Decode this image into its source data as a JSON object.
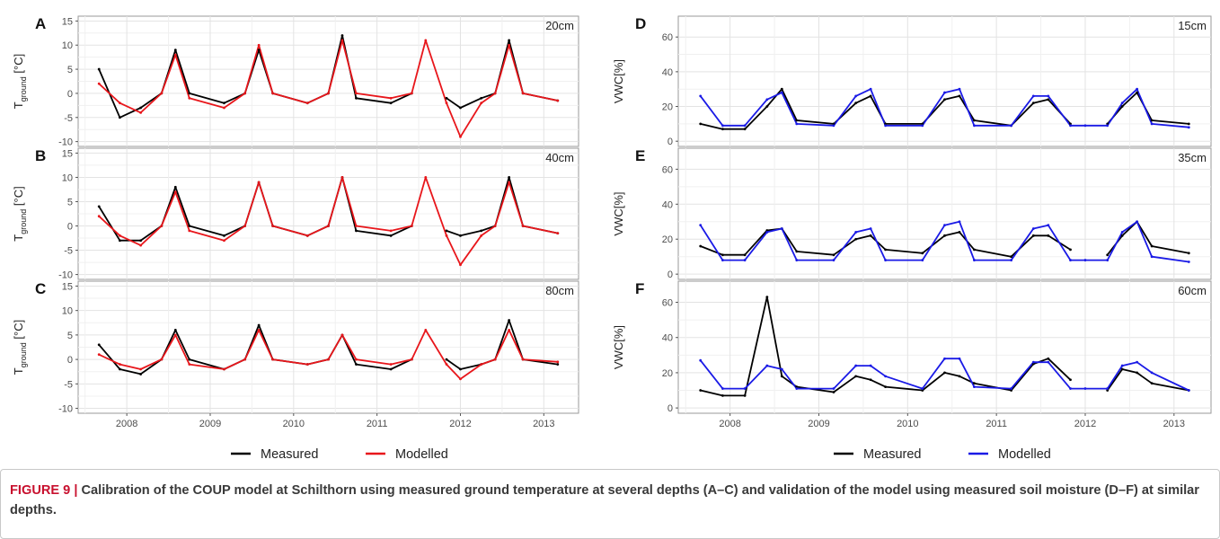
{
  "figure": {
    "years": [
      "2008",
      "2009",
      "2010",
      "2011",
      "2012",
      "2013"
    ],
    "left_ylabel_main": "T",
    "left_ylabel_sub": "ground",
    "left_ylabel_unit": " [°C]",
    "right_ylabel": "VWC[%]",
    "left_legend": [
      {
        "label": "Measured",
        "color": "#000000"
      },
      {
        "label": "Modelled",
        "color": "#e8161b"
      }
    ],
    "right_legend": [
      {
        "label": "Measured",
        "color": "#000000"
      },
      {
        "label": "Modelled",
        "color": "#1a1ae6"
      }
    ]
  },
  "chart_data": [
    {
      "panel": "A",
      "type": "line",
      "depth_label": "20cm",
      "x": [
        "2007-09",
        "2007-12",
        "2008-03",
        "2008-06",
        "2008-08",
        "2008-10",
        "2009-03",
        "2009-06",
        "2009-08",
        "2009-10",
        "2010-03",
        "2010-06",
        "2010-08",
        "2010-10",
        "2011-03",
        "2011-06",
        "2011-08",
        "2011-11",
        "2012-01",
        "2012-04",
        "2012-06",
        "2012-08",
        "2012-10",
        "2013-03"
      ],
      "xlim": [
        "2007-06",
        "2013-06"
      ],
      "ylim": [
        -11,
        16
      ],
      "yticks": [
        -10,
        -5,
        0,
        5,
        10,
        15
      ],
      "series": [
        {
          "name": "Measured",
          "color": "#000000",
          "values": [
            5,
            -5,
            -3,
            0,
            9,
            0,
            -2,
            0,
            9,
            0,
            -2,
            0,
            12,
            -1,
            -2,
            0,
            null,
            -1,
            -3,
            -1,
            0,
            11,
            0,
            -1.5
          ]
        },
        {
          "name": "Modelled",
          "color": "#e8161b",
          "values": [
            2,
            -2,
            -4,
            0,
            8,
            -1,
            -3,
            0,
            10,
            0,
            -2,
            0,
            11,
            0,
            -1,
            0,
            11,
            -2,
            -9,
            -2,
            0,
            10,
            0,
            -1.5
          ]
        }
      ]
    },
    {
      "panel": "B",
      "type": "line",
      "depth_label": "40cm",
      "x": [
        "2007-09",
        "2007-12",
        "2008-03",
        "2008-06",
        "2008-08",
        "2008-10",
        "2009-03",
        "2009-06",
        "2009-08",
        "2009-10",
        "2010-03",
        "2010-06",
        "2010-08",
        "2010-10",
        "2011-03",
        "2011-06",
        "2011-08",
        "2011-11",
        "2012-01",
        "2012-04",
        "2012-06",
        "2012-08",
        "2012-10",
        "2013-03"
      ],
      "xlim": [
        "2007-06",
        "2013-06"
      ],
      "ylim": [
        -11,
        16
      ],
      "yticks": [
        -10,
        -5,
        0,
        5,
        10,
        15
      ],
      "series": [
        {
          "name": "Measured",
          "color": "#000000",
          "values": [
            4,
            -3,
            -3,
            0,
            8,
            0,
            -2,
            0,
            9,
            0,
            -2,
            0,
            10,
            -1,
            -2,
            0,
            null,
            -1,
            -2,
            -1,
            0,
            10,
            0,
            -1.5
          ]
        },
        {
          "name": "Modelled",
          "color": "#e8161b",
          "values": [
            2,
            -2,
            -4,
            0,
            7,
            -1,
            -3,
            0,
            9,
            0,
            -2,
            0,
            10,
            0,
            -1,
            0,
            10,
            -2,
            -8,
            -2,
            0,
            9,
            0,
            -1.5
          ]
        }
      ]
    },
    {
      "panel": "C",
      "type": "line",
      "depth_label": "80cm",
      "x": [
        "2007-09",
        "2007-12",
        "2008-03",
        "2008-06",
        "2008-08",
        "2008-10",
        "2009-03",
        "2009-06",
        "2009-08",
        "2009-10",
        "2010-03",
        "2010-06",
        "2010-08",
        "2010-10",
        "2011-03",
        "2011-06",
        "2011-08",
        "2011-11",
        "2012-01",
        "2012-04",
        "2012-06",
        "2012-08",
        "2012-10",
        "2013-03"
      ],
      "xlim": [
        "2007-06",
        "2013-06"
      ],
      "ylim": [
        -11,
        16
      ],
      "yticks": [
        -10,
        -5,
        0,
        5,
        10,
        15
      ],
      "series": [
        {
          "name": "Measured",
          "color": "#000000",
          "values": [
            3,
            -2,
            -3,
            0,
            6,
            0,
            -2,
            0,
            7,
            0,
            -1,
            0,
            5,
            -1,
            -2,
            0,
            null,
            0,
            -2,
            -1,
            0,
            8,
            0,
            -1
          ]
        },
        {
          "name": "Modelled",
          "color": "#e8161b",
          "values": [
            1,
            -1,
            -2,
            0,
            5,
            -1,
            -2,
            0,
            6,
            0,
            -1,
            0,
            5,
            0,
            -1,
            0,
            6,
            -1,
            -4,
            -1,
            0,
            6,
            0,
            -0.5
          ]
        }
      ]
    },
    {
      "panel": "D",
      "type": "line",
      "depth_label": "15cm",
      "x": [
        "2007-09",
        "2007-12",
        "2008-03",
        "2008-06",
        "2008-08",
        "2008-10",
        "2009-03",
        "2009-06",
        "2009-08",
        "2009-10",
        "2010-03",
        "2010-06",
        "2010-08",
        "2010-10",
        "2011-03",
        "2011-06",
        "2011-08",
        "2011-11",
        "2012-01",
        "2012-04",
        "2012-06",
        "2012-08",
        "2012-10",
        "2013-03"
      ],
      "xlim": [
        "2007-06",
        "2013-06"
      ],
      "ylim": [
        -3,
        72
      ],
      "yticks": [
        0,
        20,
        40,
        60
      ],
      "series": [
        {
          "name": "Measured",
          "color": "#000000",
          "values": [
            10,
            7,
            7,
            20,
            30,
            12,
            10,
            22,
            26,
            10,
            10,
            24,
            26,
            12,
            9,
            22,
            24,
            10,
            null,
            10,
            20,
            28,
            12,
            10
          ]
        },
        {
          "name": "Modelled",
          "color": "#1a1ae6",
          "values": [
            26,
            9,
            9,
            24,
            28,
            10,
            9,
            26,
            30,
            9,
            9,
            28,
            30,
            9,
            9,
            26,
            26,
            9,
            9,
            9,
            22,
            30,
            10,
            8
          ]
        }
      ]
    },
    {
      "panel": "E",
      "type": "line",
      "depth_label": "35cm",
      "x": [
        "2007-09",
        "2007-12",
        "2008-03",
        "2008-06",
        "2008-08",
        "2008-10",
        "2009-03",
        "2009-06",
        "2009-08",
        "2009-10",
        "2010-03",
        "2010-06",
        "2010-08",
        "2010-10",
        "2011-03",
        "2011-06",
        "2011-08",
        "2011-11",
        "2012-01",
        "2012-04",
        "2012-06",
        "2012-08",
        "2012-10",
        "2013-03"
      ],
      "xlim": [
        "2007-06",
        "2013-06"
      ],
      "ylim": [
        -3,
        72
      ],
      "yticks": [
        0,
        20,
        40,
        60
      ],
      "series": [
        {
          "name": "Measured",
          "color": "#000000",
          "values": [
            16,
            11,
            11,
            25,
            26,
            13,
            11,
            20,
            22,
            14,
            12,
            22,
            24,
            14,
            10,
            22,
            22,
            14,
            null,
            11,
            22,
            30,
            16,
            12
          ]
        },
        {
          "name": "Modelled",
          "color": "#1a1ae6",
          "values": [
            28,
            8,
            8,
            24,
            26,
            8,
            8,
            24,
            26,
            8,
            8,
            28,
            30,
            8,
            8,
            26,
            28,
            8,
            8,
            8,
            24,
            30,
            10,
            7
          ]
        }
      ]
    },
    {
      "panel": "F",
      "type": "line",
      "depth_label": "60cm",
      "x": [
        "2007-09",
        "2007-12",
        "2008-03",
        "2008-06",
        "2008-08",
        "2008-10",
        "2009-03",
        "2009-06",
        "2009-08",
        "2009-10",
        "2010-03",
        "2010-06",
        "2010-08",
        "2010-10",
        "2011-03",
        "2011-06",
        "2011-08",
        "2011-11",
        "2012-01",
        "2012-04",
        "2012-06",
        "2012-08",
        "2012-10",
        "2013-03"
      ],
      "xlim": [
        "2007-06",
        "2013-06"
      ],
      "ylim": [
        -3,
        72
      ],
      "yticks": [
        0,
        20,
        40,
        60
      ],
      "series": [
        {
          "name": "Measured",
          "color": "#000000",
          "values": [
            10,
            7,
            7,
            63,
            18,
            12,
            9,
            18,
            16,
            12,
            10,
            20,
            18,
            14,
            10,
            25,
            28,
            16,
            null,
            10,
            22,
            20,
            14,
            10
          ]
        },
        {
          "name": "Modelled",
          "color": "#1a1ae6",
          "values": [
            27,
            11,
            11,
            24,
            22,
            11,
            11,
            24,
            24,
            18,
            11,
            28,
            28,
            12,
            11,
            26,
            26,
            11,
            11,
            11,
            24,
            26,
            20,
            10
          ]
        }
      ]
    }
  ],
  "caption": {
    "label": "FIGURE 9 |",
    "text": " Calibration of the COUP model at Schilthorn using measured ground temperature at several depths (A–C) and validation of the model using measured soil moisture (D–F) at similar depths."
  }
}
